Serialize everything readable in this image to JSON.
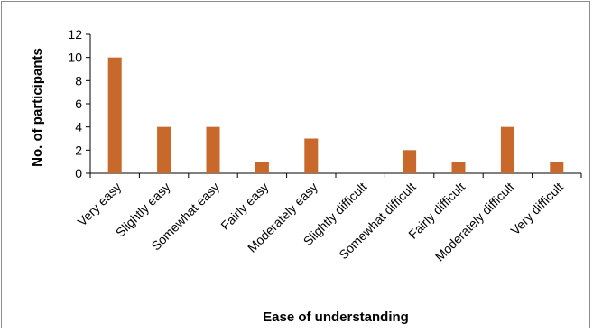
{
  "chart_data": {
    "type": "bar",
    "title": "",
    "xlabel": "Ease of understanding",
    "ylabel": "No. of participants",
    "categories": [
      "Very easy",
      "Slightly easy",
      "Somewhat easy",
      "Fairly easy",
      "Moderately easy",
      "Slightly difficult",
      "Somewhat difficult",
      "Fairly difficult",
      "Moderately difficult",
      "Very difficult"
    ],
    "values": [
      10,
      4,
      4,
      1,
      3,
      0,
      2,
      1,
      4,
      1
    ],
    "ylim": [
      0,
      12
    ],
    "yticks": [
      "0",
      "2",
      "4",
      "6",
      "8",
      "10",
      "12"
    ],
    "grid": false,
    "legend": "none",
    "bar_color": "#c8682a"
  }
}
